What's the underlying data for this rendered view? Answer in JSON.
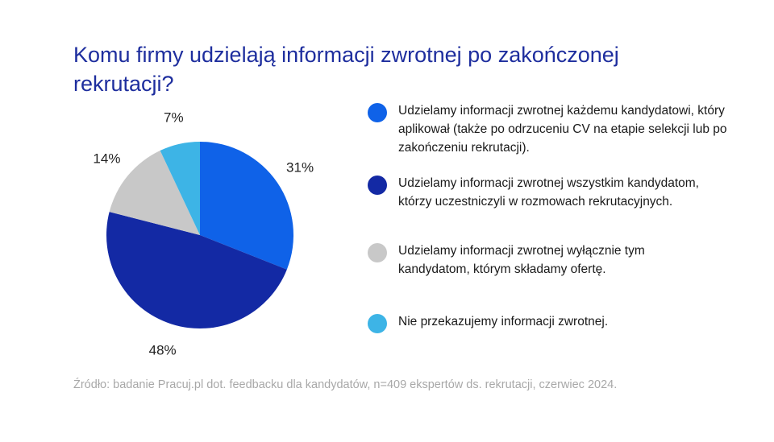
{
  "title": "Komu firmy udzielają informacji zwrotnej po zakończonej rekrutacji?",
  "source": "Źródło: badanie Pracuj.pl dot. feedbacku dla kandydatów, n=409 ekspertów ds. rekrutacji, czerwiec 2024.",
  "chart_data": {
    "type": "pie",
    "title": "Komu firmy udzielają informacji zwrotnej po zakończonej rekrutacji?",
    "slices": [
      {
        "label": "Udzielamy informacji zwrotnej każdemu kandydatowi, który aplikował (także po odrzuceniu CV na etapie selekcji lub po zakończeniu rekrutacji).",
        "value": 31,
        "value_label": "31%",
        "color": "#0f62e8"
      },
      {
        "label": "Udzielamy informacji zwrotnej wszystkim kandydatom, którzy uczestniczyli w rozmowach rekrutacyjnych.",
        "value": 48,
        "value_label": "48%",
        "color": "#1329a4"
      },
      {
        "label": "Udzielamy informacji zwrotnej wyłącznie tym kandydatom, którym składamy ofertę.",
        "value": 14,
        "value_label": "14%",
        "color": "#c8c8c8"
      },
      {
        "label": "Nie przekazujemy informacji zwrotnej.",
        "value": 7,
        "value_label": "7%",
        "color": "#3db4e6"
      }
    ],
    "start_angle": "12 o'clock",
    "direction": "clockwise",
    "legend_position": "right"
  }
}
